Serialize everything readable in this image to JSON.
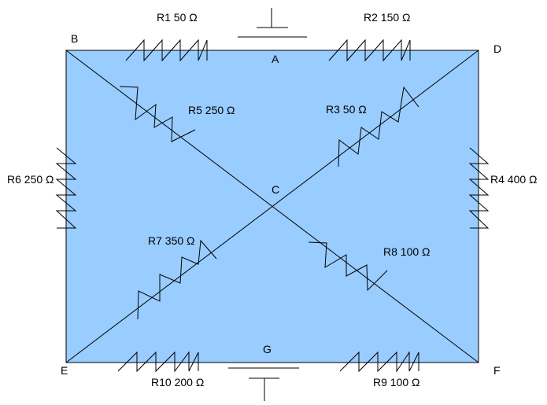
{
  "colors": {
    "panel_fill": "#99ccff",
    "line": "#000000"
  },
  "nodes": {
    "A": "A",
    "B": "B",
    "C": "C",
    "D": "D",
    "E": "E",
    "F": "F",
    "G": "G"
  },
  "resistors": {
    "r1": "R1  50 Ω",
    "r2": "R2  150 Ω",
    "r3": "R3  50 Ω",
    "r4": "R4  400 Ω",
    "r5": "R5  250 Ω",
    "r6": "R6  250 Ω",
    "r7": "R7  350 Ω",
    "r8": "R8  100 Ω",
    "r9": "R9  100 Ω",
    "r10": "R10  200 Ω"
  },
  "icons": {
    "top_source": "ground-symbol-icon",
    "bottom_source": "ground-symbol-icon"
  }
}
